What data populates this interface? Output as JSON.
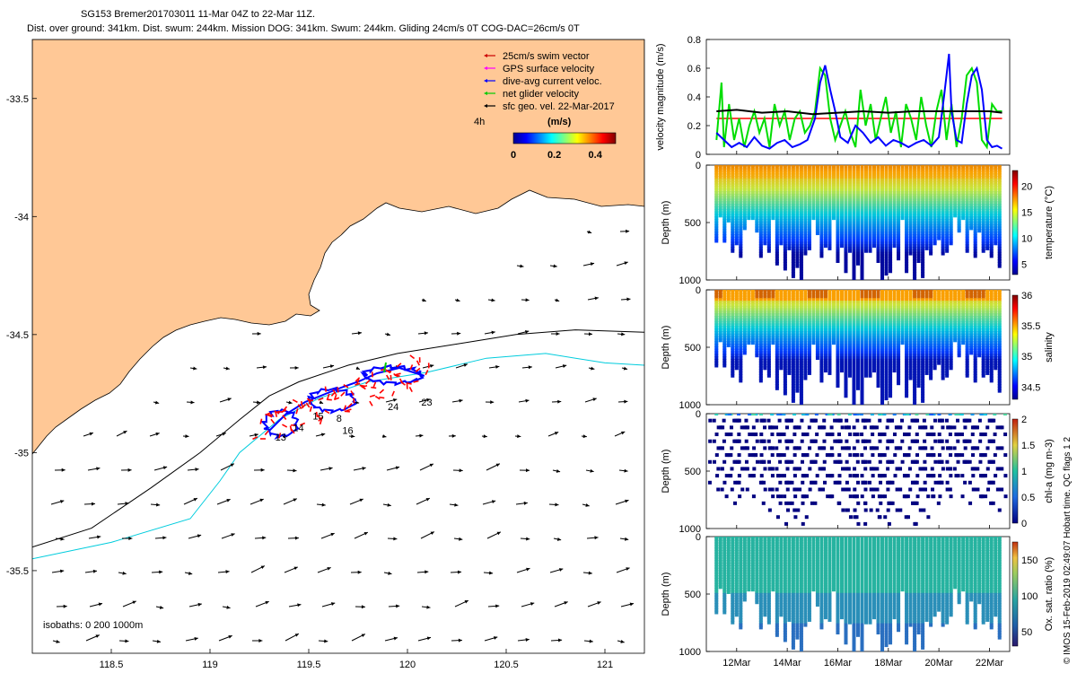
{
  "header": {
    "line1": "SG153 Bremer201703011 11-Mar 04Z to 22-Mar 11Z.",
    "line2": "Dist. over ground: 341km. Dist. swum: 244km. Mission DOG: 341km. Swum: 244km. Gliding 24cm/s 0T COG-DAC=26cm/s 0T"
  },
  "credit": "© IMOS 15-Feb-2019 02:49:07 Hobart time. QC flags 1  2",
  "chart_data": [
    {
      "type": "map",
      "xlim": [
        118.1,
        121.2
      ],
      "ylim": [
        -35.85,
        -33.25
      ],
      "xticks": [
        "118.5",
        "119",
        "119.5",
        "120",
        "120.5",
        "121"
      ],
      "xtick_values": [
        118.5,
        119,
        119.5,
        120,
        120.5,
        121
      ],
      "yticks": [
        "-33.5",
        "-34",
        "-34.5",
        "-35",
        "-35.5"
      ],
      "ytick_values": [
        -33.5,
        -34,
        -34.5,
        -35,
        -35.5
      ],
      "legend": [
        {
          "label": "25cm/s swim vector",
          "color": "#cc0000"
        },
        {
          "label": "GPS surface velocity",
          "color": "#ff00ff"
        },
        {
          "label": "dive-avg current veloc.",
          "color": "#0000ff"
        },
        {
          "label": "net glider velocity",
          "color": "#00cc00"
        },
        {
          "label": "sfc geo. vel. 22-Mar-2017",
          "color": "#000000"
        }
      ],
      "colorbar": {
        "prefix": "4h",
        "label": "(m/s)",
        "ticks": [
          "0",
          "0.2",
          "0.4"
        ],
        "range": [
          0,
          0.5
        ]
      },
      "isobaths_label": "isobaths: 0   200   1000m",
      "isobaths": [
        {
          "depth": 200,
          "color": "#000000",
          "lon": [
            118.1,
            118.4,
            118.7,
            118.95,
            119.15,
            119.3,
            119.45,
            119.7,
            119.95,
            120.25,
            120.55,
            120.85,
            121.2
          ],
          "lat": [
            -35.4,
            -35.32,
            -35.15,
            -35.0,
            -34.86,
            -34.76,
            -34.7,
            -34.63,
            -34.58,
            -34.54,
            -34.5,
            -34.48,
            -34.49
          ]
        },
        {
          "depth": 1000,
          "color": "#00ccdd",
          "lon": [
            118.1,
            118.5,
            118.9,
            119.05,
            119.15,
            119.35,
            119.55,
            119.8,
            120.1,
            120.4,
            120.7,
            121.0,
            121.2
          ],
          "lat": [
            -35.45,
            -35.38,
            -35.28,
            -35.12,
            -35.0,
            -34.86,
            -34.77,
            -34.7,
            -34.66,
            -34.6,
            -34.58,
            -34.62,
            -34.63
          ]
        }
      ],
      "track_labels": [
        {
          "text": "13",
          "lon": 119.33,
          "lat": -34.95
        },
        {
          "text": "14",
          "lon": 119.42,
          "lat": -34.91
        },
        {
          "text": "15",
          "lon": 119.52,
          "lat": -34.86
        },
        {
          "text": "8",
          "lon": 119.64,
          "lat": -34.87
        },
        {
          "text": "16",
          "lon": 119.67,
          "lat": -34.92
        },
        {
          "text": "24",
          "lon": 119.9,
          "lat": -34.82
        },
        {
          "text": "23",
          "lon": 120.07,
          "lat": -34.8
        }
      ]
    },
    {
      "type": "line",
      "title": "",
      "ylabel": "velocity magnitude (m/s)",
      "ylim": [
        0,
        0.8
      ],
      "yticks": [
        "0",
        "0.2",
        "0.4",
        "0.6",
        "0.8"
      ],
      "xlim_days": [
        10.8,
        22.8
      ],
      "series": [
        {
          "name": "swim speed",
          "color": "#ff0000",
          "x": [
            11.2,
            22.5
          ],
          "values": [
            0.25,
            0.25
          ]
        },
        {
          "name": "net glider velocity",
          "color": "#00dd00",
          "x": [
            11.2,
            11.4,
            11.5,
            11.7,
            11.9,
            12.1,
            12.3,
            12.5,
            12.7,
            12.9,
            13.1,
            13.3,
            13.5,
            13.7,
            13.9,
            14.1,
            14.3,
            14.5,
            14.7,
            14.9,
            15.1,
            15.3,
            15.5,
            15.7,
            15.9,
            16.1,
            16.3,
            16.5,
            16.7,
            16.9,
            17.1,
            17.3,
            17.5,
            17.7,
            17.9,
            18.1,
            18.3,
            18.5,
            18.7,
            18.9,
            19.1,
            19.3,
            19.5,
            19.7,
            19.9,
            20.1,
            20.3,
            20.5,
            20.7,
            20.9,
            21.1,
            21.3,
            21.5,
            21.7,
            21.9,
            22.1,
            22.3,
            22.5
          ],
          "values": [
            0.1,
            0.5,
            0.05,
            0.35,
            0.1,
            0.25,
            0.05,
            0.2,
            0.3,
            0.15,
            0.25,
            0.05,
            0.35,
            0.2,
            0.3,
            0.1,
            0.25,
            0.3,
            0.15,
            0.2,
            0.3,
            0.6,
            0.55,
            0.25,
            0.1,
            0.2,
            0.3,
            0.15,
            0.05,
            0.45,
            0.2,
            0.35,
            0.1,
            0.25,
            0.4,
            0.15,
            0.3,
            0.05,
            0.35,
            0.25,
            0.1,
            0.4,
            0.2,
            0.05,
            0.3,
            0.45,
            0.1,
            0.35,
            0.05,
            0.25,
            0.55,
            0.6,
            0.5,
            0.1,
            0.05,
            0.35,
            0.3,
            0.3
          ]
        },
        {
          "name": "dive-avg current",
          "color": "#0000ff",
          "x": [
            11.2,
            11.5,
            11.8,
            12.1,
            12.4,
            12.7,
            13.0,
            13.3,
            13.6,
            13.9,
            14.2,
            14.5,
            14.8,
            15.1,
            15.3,
            15.5,
            15.7,
            15.9,
            16.1,
            16.4,
            16.7,
            17.0,
            17.3,
            17.6,
            17.9,
            18.2,
            18.5,
            18.8,
            19.1,
            19.4,
            19.7,
            20.0,
            20.2,
            20.4,
            20.5,
            20.7,
            20.9,
            21.1,
            21.3,
            21.5,
            21.7,
            21.9,
            22.1,
            22.3,
            22.5
          ],
          "values": [
            0.15,
            0.1,
            0.05,
            0.08,
            0.05,
            0.12,
            0.06,
            0.04,
            0.08,
            0.1,
            0.05,
            0.07,
            0.1,
            0.25,
            0.5,
            0.62,
            0.45,
            0.3,
            0.12,
            0.08,
            0.2,
            0.15,
            0.08,
            0.12,
            0.06,
            0.1,
            0.08,
            0.05,
            0.08,
            0.1,
            0.06,
            0.12,
            0.4,
            0.7,
            0.3,
            0.1,
            0.08,
            0.35,
            0.55,
            0.6,
            0.45,
            0.1,
            0.05,
            0.06,
            0.04
          ]
        },
        {
          "name": "sfc geo. vel.",
          "color": "#000000",
          "x": [
            11.2,
            12.0,
            13.0,
            14.0,
            15.0,
            16.0,
            17.0,
            18.0,
            19.0,
            20.0,
            21.0,
            22.0,
            22.5
          ],
          "values": [
            0.3,
            0.31,
            0.29,
            0.3,
            0.28,
            0.29,
            0.3,
            0.29,
            0.3,
            0.3,
            0.3,
            0.3,
            0.29
          ]
        }
      ]
    },
    {
      "type": "scatter",
      "ylabel": "Depth (m)",
      "cbar_label": "temperature (°C)",
      "yticks": [
        "0",
        "500",
        "1000"
      ],
      "cbar_ticks": [
        "5",
        "10",
        "15",
        "20"
      ],
      "cbar_range": [
        3,
        23
      ]
    },
    {
      "type": "scatter",
      "ylabel": "Depth (m)",
      "cbar_label": "salinity",
      "yticks": [
        "0",
        "500",
        "1000"
      ],
      "cbar_ticks": [
        "34.5",
        "35",
        "35.5",
        "36"
      ],
      "cbar_range": [
        34.3,
        36.0
      ]
    },
    {
      "type": "scatter",
      "ylabel": "Depth (m)",
      "cbar_label": "chl-a (mg m-3)",
      "yticks": [
        "0",
        "500",
        "1000"
      ],
      "cbar_ticks": [
        "0",
        "0.5",
        "1",
        "1.5",
        "2"
      ],
      "cbar_range": [
        0,
        2
      ]
    },
    {
      "type": "scatter",
      "ylabel": "Depth (m)",
      "cbar_label": "Ox. sat. ratio (%)",
      "yticks": [
        "0",
        "500",
        "1000"
      ],
      "cbar_ticks": [
        "50",
        "100",
        "150"
      ],
      "cbar_range": [
        30,
        175
      ]
    }
  ],
  "time_axis": {
    "ticks": [
      "12Mar",
      "14Mar",
      "16Mar",
      "18Mar",
      "20Mar",
      "22Mar"
    ],
    "tick_days": [
      12,
      14,
      16,
      18,
      20,
      22
    ]
  }
}
